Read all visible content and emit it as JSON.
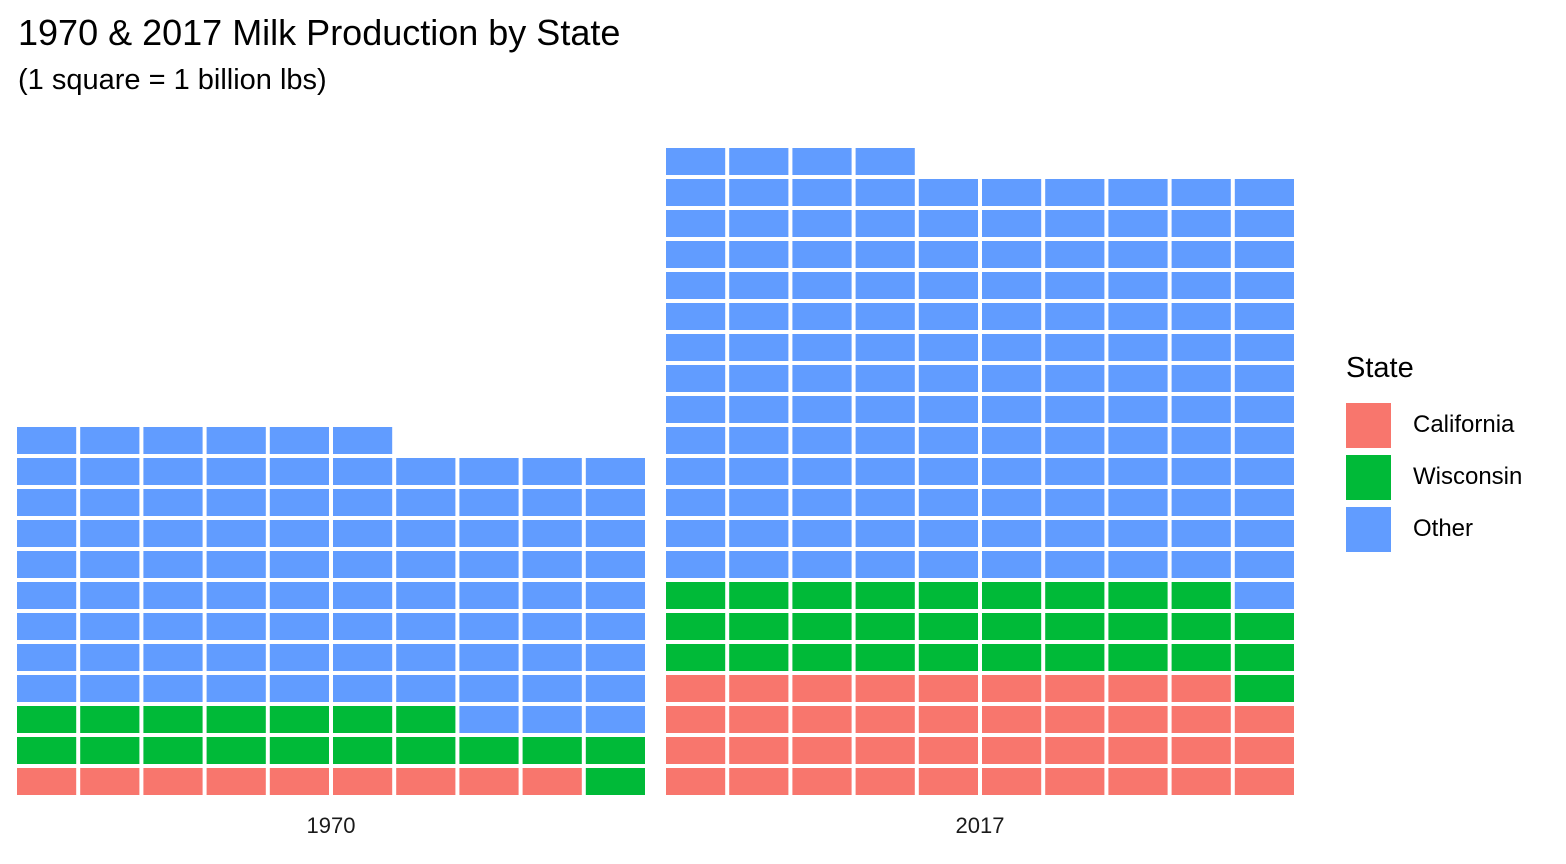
{
  "title": "1970 & 2017 Milk Production by State",
  "subtitle": "(1 square = 1 billion lbs)",
  "chart_data": {
    "type": "waffle",
    "unit": "1 billion lbs per square",
    "columns_per_panel": 10,
    "fill_order": "bottom-up, left-to-right, categories stacked in legend order",
    "categories": [
      "California",
      "Wisconsin",
      "Other"
    ],
    "colors": {
      "California": "#F8766D",
      "Wisconsin": "#00BA38",
      "Other": "#619CFF"
    },
    "panels": [
      {
        "label": "1970",
        "values": {
          "California": 9,
          "Wisconsin": 18,
          "Other": 89
        }
      },
      {
        "label": "2017",
        "values": {
          "California": 39,
          "Wisconsin": 30,
          "Other": 135
        }
      }
    ],
    "legend": {
      "title": "State",
      "position": "right"
    },
    "grid": false
  }
}
